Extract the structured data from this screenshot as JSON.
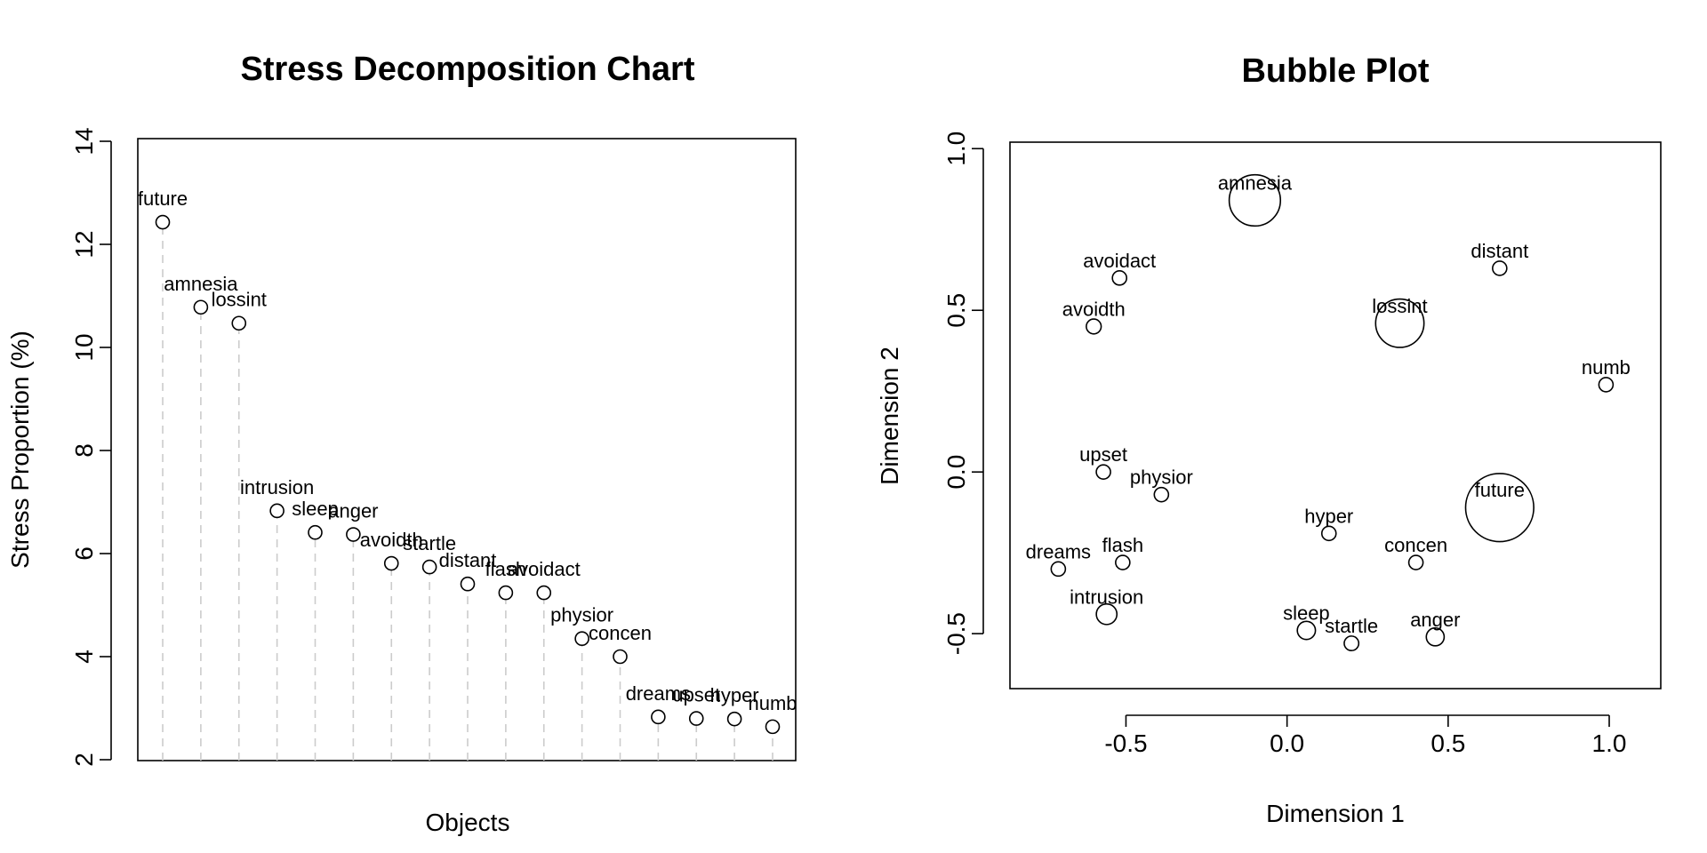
{
  "figure": {
    "background": "#ffffff",
    "foreground": "#000000",
    "stem_color": "#cccccc"
  },
  "chart_data": [
    {
      "type": "scatter",
      "subtype": "stress-decomposition",
      "title": "Stress Decomposition Chart",
      "xlabel": "Objects",
      "ylabel": "Stress Proportion (%)",
      "ylim": [
        2,
        14
      ],
      "yticks": [
        2,
        4,
        6,
        8,
        10,
        12,
        14
      ],
      "grid": false,
      "points": [
        {
          "label": "future",
          "value": 12.43
        },
        {
          "label": "amnesia",
          "value": 10.78
        },
        {
          "label": "lossint",
          "value": 10.47
        },
        {
          "label": "intrusion",
          "value": 6.83
        },
        {
          "label": "sleep",
          "value": 6.41
        },
        {
          "label": "anger",
          "value": 6.37
        },
        {
          "label": "avoidth",
          "value": 5.81
        },
        {
          "label": "startle",
          "value": 5.74
        },
        {
          "label": "distant",
          "value": 5.41
        },
        {
          "label": "flash",
          "value": 5.24
        },
        {
          "label": "avoidact",
          "value": 5.24
        },
        {
          "label": "physior",
          "value": 4.35
        },
        {
          "label": "concen",
          "value": 4.0
        },
        {
          "label": "dreams",
          "value": 2.83
        },
        {
          "label": "upset",
          "value": 2.8
        },
        {
          "label": "hyper",
          "value": 2.79
        },
        {
          "label": "numb",
          "value": 2.64
        }
      ]
    },
    {
      "type": "scatter",
      "subtype": "bubble",
      "title": "Bubble Plot",
      "xlabel": "Dimension 1",
      "ylabel": "Dimension 2",
      "xlim": [
        -0.86,
        1.16
      ],
      "ylim": [
        -0.67,
        1.02
      ],
      "xticks": [
        -0.5,
        0.0,
        0.5,
        1.0
      ],
      "xtick_labels": [
        "-0.5",
        "0.0",
        "0.5",
        "1.0"
      ],
      "yticks": [
        -0.5,
        0.0,
        0.5,
        1.0
      ],
      "ytick_labels": [
        "-0.5",
        "0.0",
        "0.5",
        "1.0"
      ],
      "grid": false,
      "points": [
        {
          "label": "amnesia",
          "x": -0.1,
          "y": 0.84,
          "stress": 10.78
        },
        {
          "label": "avoidact",
          "x": -0.52,
          "y": 0.6,
          "stress": 5.24
        },
        {
          "label": "distant",
          "x": 0.66,
          "y": 0.63,
          "stress": 5.41
        },
        {
          "label": "avoidth",
          "x": -0.6,
          "y": 0.45,
          "stress": 5.81
        },
        {
          "label": "lossint",
          "x": 0.35,
          "y": 0.46,
          "stress": 10.47
        },
        {
          "label": "numb",
          "x": 0.99,
          "y": 0.27,
          "stress": 2.64
        },
        {
          "label": "upset",
          "x": -0.57,
          "y": 0.0,
          "stress": 2.8
        },
        {
          "label": "physior",
          "x": -0.39,
          "y": -0.07,
          "stress": 4.35
        },
        {
          "label": "future",
          "x": 0.66,
          "y": -0.11,
          "stress": 12.43
        },
        {
          "label": "hyper",
          "x": 0.13,
          "y": -0.19,
          "stress": 2.79
        },
        {
          "label": "dreams",
          "x": -0.71,
          "y": -0.3,
          "stress": 2.83
        },
        {
          "label": "flash",
          "x": -0.51,
          "y": -0.28,
          "stress": 5.24
        },
        {
          "label": "concen",
          "x": 0.4,
          "y": -0.28,
          "stress": 4.0
        },
        {
          "label": "intrusion",
          "x": -0.56,
          "y": -0.44,
          "stress": 6.83
        },
        {
          "label": "sleep",
          "x": 0.06,
          "y": -0.49,
          "stress": 6.41
        },
        {
          "label": "startle",
          "x": 0.2,
          "y": -0.53,
          "stress": 5.74
        },
        {
          "label": "anger",
          "x": 0.46,
          "y": -0.51,
          "stress": 6.37
        }
      ]
    }
  ]
}
